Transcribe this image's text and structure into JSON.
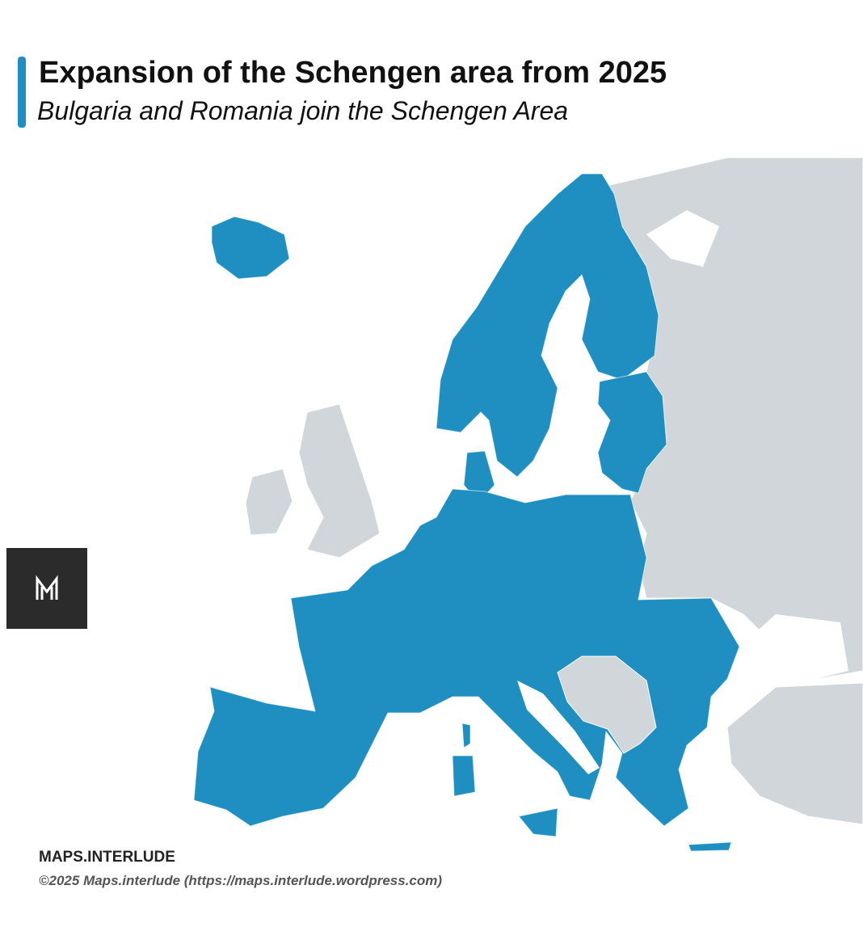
{
  "header": {
    "title": "Expansion of the Schengen area from 2025",
    "subtitle": "Bulgaria and Romania join the Schengen Area"
  },
  "footer": {
    "brand": "MAPS.INTERLUDE",
    "copyright": "©2025 Maps.interlude (https://maps.interlude.wordpress.com)"
  }
}
